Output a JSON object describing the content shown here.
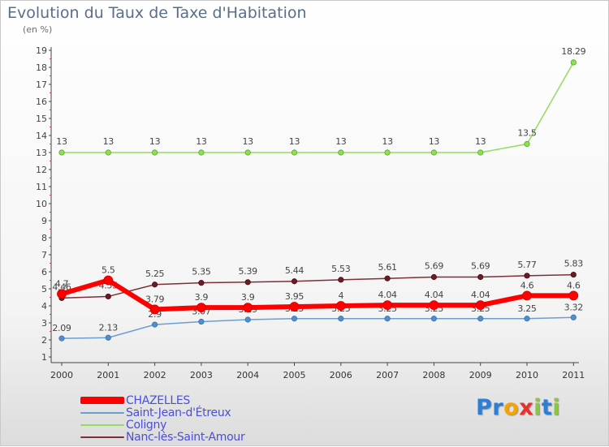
{
  "colors": {
    "CHAZELLES": "#ff0000",
    "Saint-Jean-d'Étreux": "#6a9fd0",
    "Coligny": "#94dc60",
    "Nanc-lès-Saint-Amour": "#7d2f37"
  },
  "logo": {
    "letters": [
      {
        "char": "P",
        "color": "#2c7fd8"
      },
      {
        "char": "r",
        "color": "#2c7fd8"
      },
      {
        "char": "o",
        "color": "#f5a400"
      },
      {
        "char": "x",
        "color": "#e8312a"
      },
      {
        "char": "i",
        "color": "#8cc63e"
      },
      {
        "char": "t",
        "color": "#2c7fd8"
      },
      {
        "char": "i",
        "color": "#8cc63e"
      }
    ]
  },
  "chart_data": {
    "type": "line",
    "title": "Evolution du Taux de Taxe d'Habitation",
    "subtitle": "(en %)",
    "categories": [
      "2000",
      "2001",
      "2002",
      "2003",
      "2004",
      "2005",
      "2006",
      "2007",
      "2008",
      "2009",
      "2010",
      "2011"
    ],
    "ylim": [
      1,
      19
    ],
    "yticks": [
      "1",
      "2",
      "3",
      "4",
      "5",
      "6",
      "7",
      "8",
      "9",
      "10",
      "11",
      "12",
      "13",
      "14",
      "15",
      "16",
      "17",
      "18",
      "19"
    ],
    "grid": false,
    "series": [
      {
        "name": "Coligny",
        "values": [
          13,
          13,
          13,
          13,
          13,
          13,
          13,
          13,
          13,
          13,
          13.5,
          18.29
        ],
        "labels": [
          "13",
          "13",
          "13",
          "13",
          "13",
          "13",
          "13",
          "13",
          "13",
          "13",
          "13.5",
          "18.29"
        ]
      },
      {
        "name": "Nanc-lès-Saint-Amour",
        "values": [
          4.46,
          4.55,
          5.25,
          5.35,
          5.39,
          5.44,
          5.53,
          5.61,
          5.69,
          5.69,
          5.77,
          5.83
        ],
        "labels": [
          "4.46",
          "4.55",
          "5.25",
          "5.35",
          "5.39",
          "5.44",
          "5.53",
          "5.61",
          "5.69",
          "5.69",
          "5.77",
          "5.83"
        ]
      },
      {
        "name": "CHAZELLES",
        "values": [
          4.7,
          5.5,
          3.79,
          3.9,
          3.9,
          3.95,
          4,
          4.04,
          4.04,
          4.04,
          4.6,
          4.6
        ],
        "labels": [
          "4.7",
          "5.5",
          "3.79",
          "3.9",
          "3.9",
          "3.95",
          "4",
          "4.04",
          "4.04",
          "4.04",
          "4.6",
          "4.6"
        ]
      },
      {
        "name": "Saint-Jean-d'Étreux",
        "values": [
          2.09,
          2.13,
          2.9,
          3.07,
          3.19,
          3.25,
          3.25,
          3.25,
          3.25,
          3.25,
          3.25,
          3.32
        ],
        "labels": [
          "2.09",
          "2.13",
          "2.9",
          "3.07",
          "3.19",
          "3.25",
          "3.25",
          "3.25",
          "3.25",
          "3.25",
          "3.25",
          "3.32"
        ]
      }
    ],
    "legend": [
      "CHAZELLES",
      "Saint-Jean-d'Étreux",
      "Coligny",
      "Nanc-lès-Saint-Amour"
    ]
  }
}
